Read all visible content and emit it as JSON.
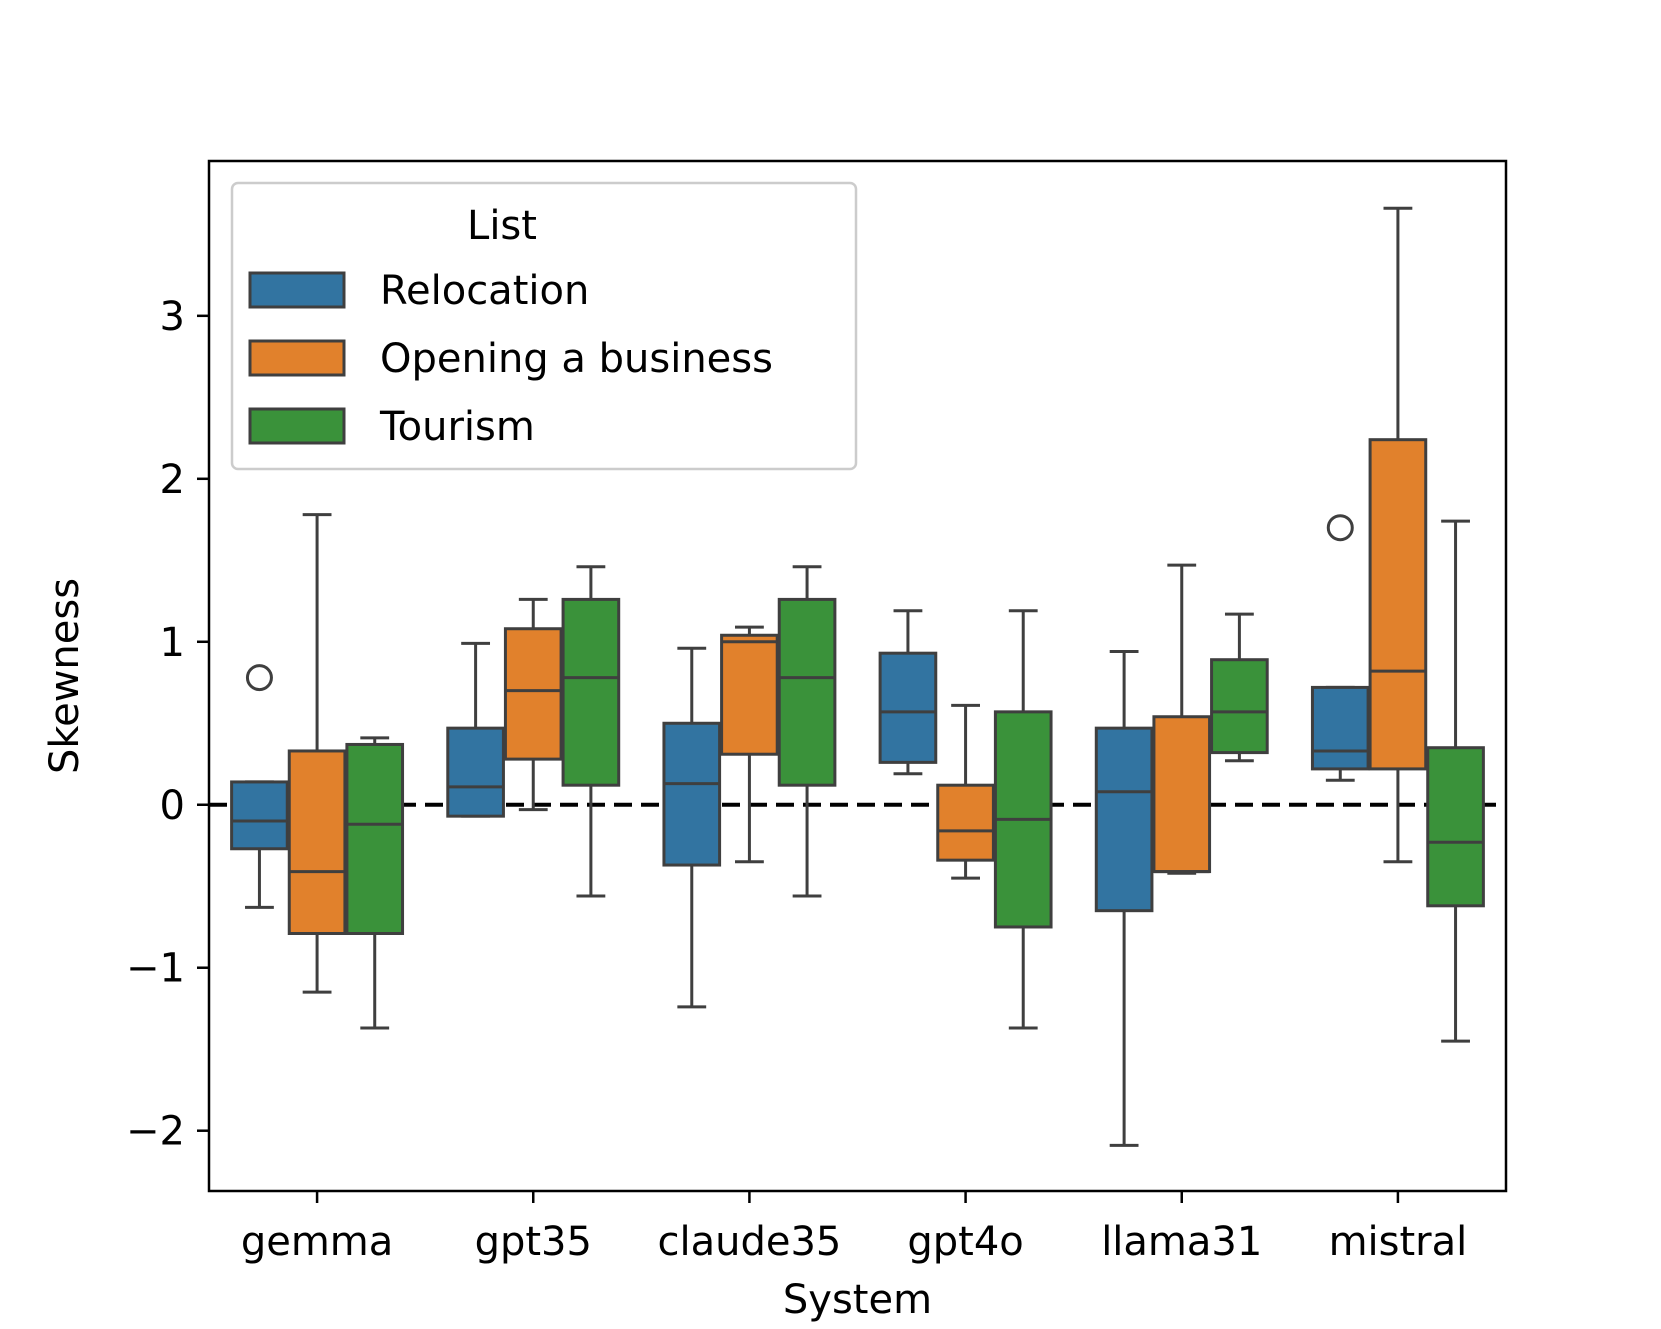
{
  "chart_data": {
    "type": "boxplot",
    "title": "",
    "xlabel": "System",
    "ylabel": "Skewness",
    "ylim": [
      -2.37,
      3.95
    ],
    "yticks": [
      -2,
      -1,
      0,
      1,
      2,
      3
    ],
    "ytick_labels": [
      "−2",
      "−1",
      "0",
      "1",
      "2",
      "3"
    ],
    "categories": [
      "gemma",
      "gpt35",
      "claude35",
      "gpt4o",
      "llama31",
      "mistral"
    ],
    "reference_line": {
      "y": 0,
      "style": "dashed",
      "color": "#000000"
    },
    "legend": {
      "title": "List",
      "position": "upper left"
    },
    "series": [
      {
        "name": "Relocation",
        "color": "#3274a1",
        "boxes": [
          {
            "whislo": -0.63,
            "q1": -0.27,
            "med": -0.1,
            "q3": 0.14,
            "whishi": 0.14,
            "fliers": [
              0.78
            ]
          },
          {
            "whislo": -0.07,
            "q1": -0.07,
            "med": 0.11,
            "q3": 0.47,
            "whishi": 0.99,
            "fliers": []
          },
          {
            "whislo": -1.24,
            "q1": -0.37,
            "med": 0.13,
            "q3": 0.5,
            "whishi": 0.96,
            "fliers": []
          },
          {
            "whislo": 0.19,
            "q1": 0.26,
            "med": 0.57,
            "q3": 0.93,
            "whishi": 1.19,
            "fliers": []
          },
          {
            "whislo": -2.09,
            "q1": -0.65,
            "med": 0.08,
            "q3": 0.47,
            "whishi": 0.94,
            "fliers": []
          },
          {
            "whislo": 0.15,
            "q1": 0.22,
            "med": 0.33,
            "q3": 0.72,
            "whishi": 0.72,
            "fliers": [
              1.7
            ]
          }
        ]
      },
      {
        "name": "Opening a business",
        "color": "#e1812c",
        "boxes": [
          {
            "whislo": -1.15,
            "q1": -0.79,
            "med": -0.41,
            "q3": 0.33,
            "whishi": 1.78,
            "fliers": []
          },
          {
            "whislo": -0.03,
            "q1": 0.28,
            "med": 0.7,
            "q3": 1.08,
            "whishi": 1.26,
            "fliers": []
          },
          {
            "whislo": -0.35,
            "q1": 0.31,
            "med": 1.0,
            "q3": 1.04,
            "whishi": 1.09,
            "fliers": []
          },
          {
            "whislo": -0.45,
            "q1": -0.34,
            "med": -0.16,
            "q3": 0.12,
            "whishi": 0.61,
            "fliers": []
          },
          {
            "whislo": -0.42,
            "q1": -0.41,
            "med": -0.41,
            "q3": 0.54,
            "whishi": 1.47,
            "fliers": []
          },
          {
            "whislo": -0.35,
            "q1": 0.22,
            "med": 0.82,
            "q3": 2.24,
            "whishi": 3.66,
            "fliers": []
          }
        ]
      },
      {
        "name": "Tourism",
        "color": "#3a923a",
        "boxes": [
          {
            "whislo": -1.37,
            "q1": -0.79,
            "med": -0.12,
            "q3": 0.37,
            "whishi": 0.41,
            "fliers": []
          },
          {
            "whislo": -0.56,
            "q1": 0.12,
            "med": 0.78,
            "q3": 1.26,
            "whishi": 1.46,
            "fliers": []
          },
          {
            "whislo": -0.56,
            "q1": 0.12,
            "med": 0.78,
            "q3": 1.26,
            "whishi": 1.46,
            "fliers": []
          },
          {
            "whislo": -1.37,
            "q1": -0.75,
            "med": -0.09,
            "q3": 0.57,
            "whishi": 1.19,
            "fliers": []
          },
          {
            "whislo": 0.27,
            "q1": 0.32,
            "med": 0.57,
            "q3": 0.89,
            "whishi": 1.17,
            "fliers": []
          },
          {
            "whislo": -1.45,
            "q1": -0.62,
            "med": -0.23,
            "q3": 0.35,
            "whishi": 1.74,
            "fliers": []
          }
        ]
      }
    ]
  }
}
